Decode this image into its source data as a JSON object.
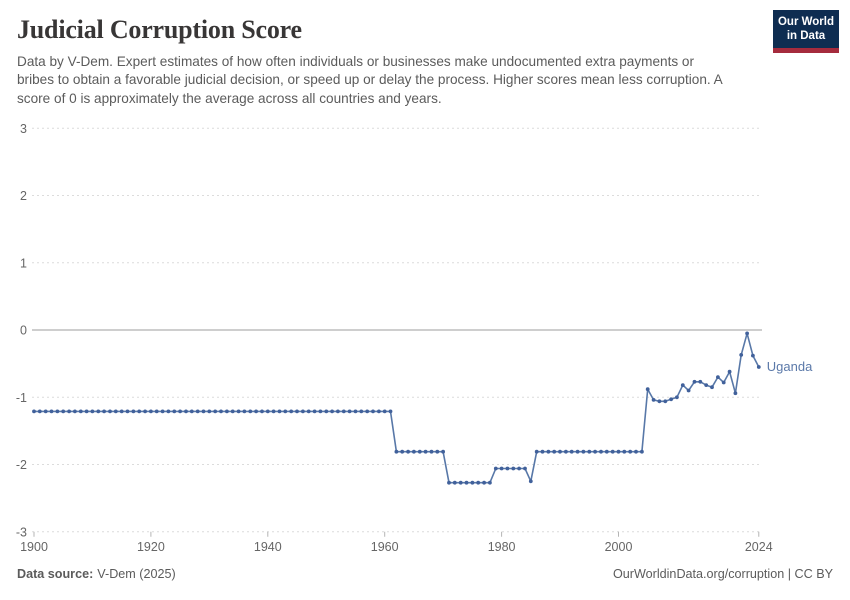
{
  "header": {
    "title": "Judicial Corruption Score",
    "subtitle": "Data by V-Dem. Expert estimates of how often individuals or businesses make undocumented extra payments or bribes to obtain a favorable judicial decision, or speed up or delay the process. Higher scores mean less corruption. A score of 0 is approximately the average across all countries and years.",
    "logo": {
      "line1": "Our World",
      "line2": "in Data"
    }
  },
  "footer": {
    "source_label": "Data source:",
    "source_value": "V-Dem (2025)",
    "attribution": "OurWorldinData.org/corruption | CC BY"
  },
  "colors": {
    "line": "#5878a8",
    "marker": "#41619b",
    "entity_label": "#5b79a9",
    "grid": "#dcdcdc",
    "zero_line": "#9e9e9e",
    "tick_mark": "#b5b5b5",
    "axis_text": "#666666",
    "logo_bg": "#0e2d51",
    "logo_stripe": "#a52b3d"
  },
  "chart_data": {
    "type": "line",
    "title": "Judicial Corruption Score",
    "xlabel": "",
    "ylabel": "",
    "xlim": [
      1900,
      2024
    ],
    "ylim": [
      -3,
      3
    ],
    "x_ticks": [
      1900,
      1920,
      1940,
      1960,
      1980,
      2000,
      2024
    ],
    "y_ticks": [
      3,
      2,
      1,
      0,
      -1,
      -2,
      -3
    ],
    "grid": "horizontal-dashed",
    "zero_line": true,
    "legend_position": "end-of-line-label",
    "series": [
      {
        "name": "Uganda",
        "start_year": 1900,
        "end_year": 2024,
        "values": [
          -1.21,
          -1.21,
          -1.21,
          -1.21,
          -1.21,
          -1.21,
          -1.21,
          -1.21,
          -1.21,
          -1.21,
          -1.21,
          -1.21,
          -1.21,
          -1.21,
          -1.21,
          -1.21,
          -1.21,
          -1.21,
          -1.21,
          -1.21,
          -1.21,
          -1.21,
          -1.21,
          -1.21,
          -1.21,
          -1.21,
          -1.21,
          -1.21,
          -1.21,
          -1.21,
          -1.21,
          -1.21,
          -1.21,
          -1.21,
          -1.21,
          -1.21,
          -1.21,
          -1.21,
          -1.21,
          -1.21,
          -1.21,
          -1.21,
          -1.21,
          -1.21,
          -1.21,
          -1.21,
          -1.21,
          -1.21,
          -1.21,
          -1.21,
          -1.21,
          -1.21,
          -1.21,
          -1.21,
          -1.21,
          -1.21,
          -1.21,
          -1.21,
          -1.21,
          -1.21,
          -1.21,
          -1.21,
          -1.81,
          -1.81,
          -1.81,
          -1.81,
          -1.81,
          -1.81,
          -1.81,
          -1.81,
          -1.81,
          -2.27,
          -2.27,
          -2.27,
          -2.27,
          -2.27,
          -2.27,
          -2.27,
          -2.27,
          -2.06,
          -2.06,
          -2.06,
          -2.06,
          -2.06,
          -2.06,
          -2.25,
          -1.81,
          -1.81,
          -1.81,
          -1.81,
          -1.81,
          -1.81,
          -1.81,
          -1.81,
          -1.81,
          -1.81,
          -1.81,
          -1.81,
          -1.81,
          -1.81,
          -1.81,
          -1.81,
          -1.81,
          -1.81,
          -1.81,
          -0.88,
          -1.04,
          -1.06,
          -1.06,
          -1.03,
          -1.0,
          -0.82,
          -0.9,
          -0.77,
          -0.77,
          -0.82,
          -0.85,
          -0.7,
          -0.78,
          -0.62,
          -0.94,
          -0.37,
          -0.05,
          -0.38,
          -0.55
        ]
      }
    ]
  }
}
